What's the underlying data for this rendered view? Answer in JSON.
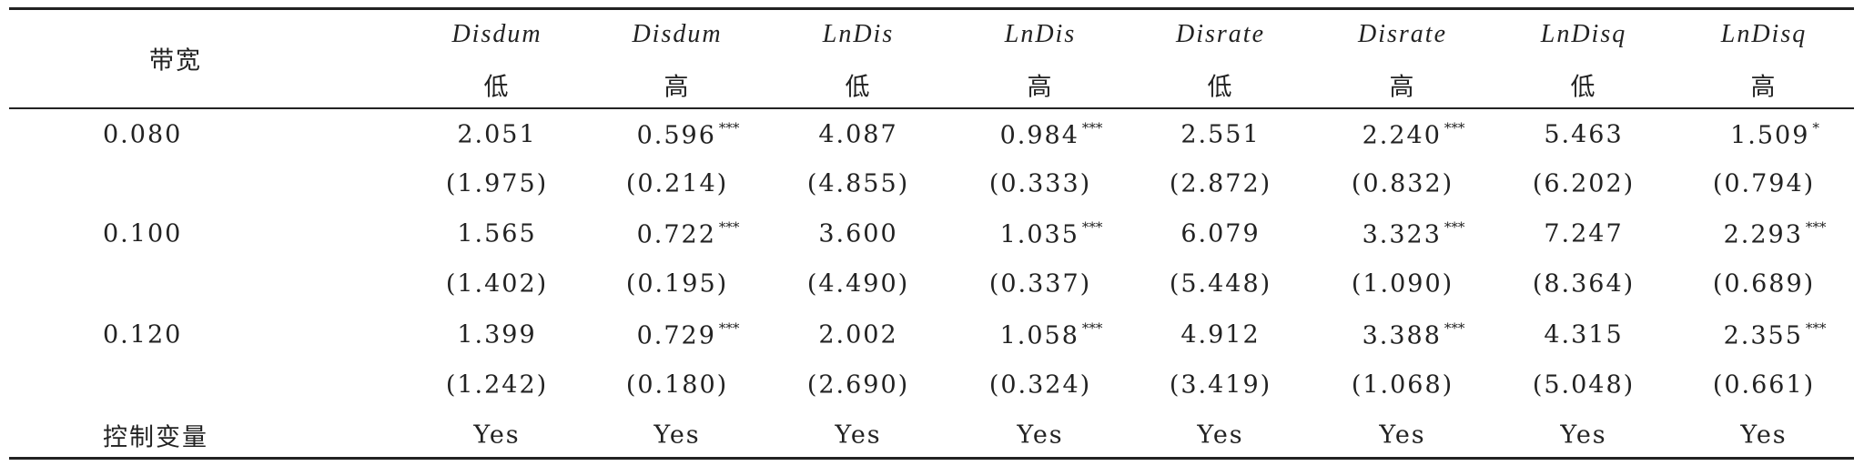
{
  "table": {
    "corner": "带宽",
    "header_vars": [
      "Disdum",
      "Disdum",
      "LnDis",
      "LnDis",
      "Disrate",
      "Disrate",
      "LnDisq",
      "LnDisq"
    ],
    "header_groups": [
      "低",
      "高",
      "低",
      "高",
      "低",
      "高",
      "低",
      "高"
    ],
    "rows": [
      {
        "label": "0.080",
        "cells": [
          {
            "value": "2.051"
          },
          {
            "value": "0.596",
            "stars": "***"
          },
          {
            "value": "4.087"
          },
          {
            "value": "0.984",
            "stars": "***"
          },
          {
            "value": "2.551"
          },
          {
            "value": "2.240",
            "stars": "***"
          },
          {
            "value": "5.463"
          },
          {
            "value": "1.509",
            "stars": "*"
          }
        ]
      },
      {
        "cells": [
          {
            "value": "(1.975)"
          },
          {
            "value": "(0.214)"
          },
          {
            "value": "(4.855)"
          },
          {
            "value": "(0.333)"
          },
          {
            "value": "(2.872)"
          },
          {
            "value": "(0.832)"
          },
          {
            "value": "(6.202)"
          },
          {
            "value": "(0.794)"
          }
        ]
      },
      {
        "label": "0.100",
        "cells": [
          {
            "value": "1.565"
          },
          {
            "value": "0.722",
            "stars": "***"
          },
          {
            "value": "3.600"
          },
          {
            "value": "1.035",
            "stars": "***"
          },
          {
            "value": "6.079"
          },
          {
            "value": "3.323",
            "stars": "***"
          },
          {
            "value": "7.247"
          },
          {
            "value": "2.293",
            "stars": "***"
          }
        ]
      },
      {
        "cells": [
          {
            "value": "(1.402)"
          },
          {
            "value": "(0.195)"
          },
          {
            "value": "(4.490)"
          },
          {
            "value": "(0.337)"
          },
          {
            "value": "(5.448)"
          },
          {
            "value": "(1.090)"
          },
          {
            "value": "(8.364)"
          },
          {
            "value": "(0.689)"
          }
        ]
      },
      {
        "label": "0.120",
        "cells": [
          {
            "value": "1.399"
          },
          {
            "value": "0.729",
            "stars": "***"
          },
          {
            "value": "2.002"
          },
          {
            "value": "1.058",
            "stars": "***"
          },
          {
            "value": "4.912"
          },
          {
            "value": "3.388",
            "stars": "***"
          },
          {
            "value": "4.315"
          },
          {
            "value": "2.355",
            "stars": "***"
          }
        ]
      },
      {
        "cells": [
          {
            "value": "(1.242)"
          },
          {
            "value": "(0.180)"
          },
          {
            "value": "(2.690)"
          },
          {
            "value": "(0.324)"
          },
          {
            "value": "(3.419)"
          },
          {
            "value": "(1.068)"
          },
          {
            "value": "(5.048)"
          },
          {
            "value": "(0.661)"
          }
        ]
      },
      {
        "label": "控制变量",
        "cells": [
          {
            "value": "Yes"
          },
          {
            "value": "Yes"
          },
          {
            "value": "Yes"
          },
          {
            "value": "Yes"
          },
          {
            "value": "Yes"
          },
          {
            "value": "Yes"
          },
          {
            "value": "Yes"
          },
          {
            "value": "Yes"
          }
        ]
      }
    ]
  }
}
